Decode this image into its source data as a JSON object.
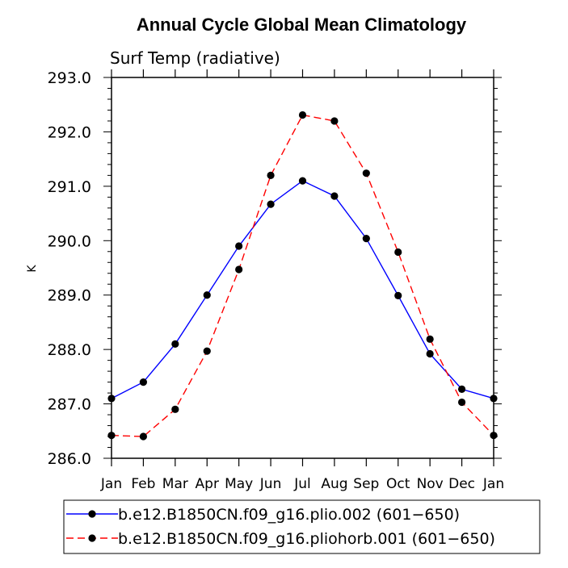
{
  "chart_data": {
    "type": "line",
    "title": "Annual Cycle Global Mean Climatology",
    "subtitle": "Surf Temp (radiative)",
    "xlabel": "",
    "ylabel": "K",
    "categories": [
      "Jan",
      "Feb",
      "Mar",
      "Apr",
      "May",
      "Jun",
      "Jul",
      "Aug",
      "Sep",
      "Oct",
      "Nov",
      "Dec",
      "Jan"
    ],
    "ylim": [
      286.0,
      293.0
    ],
    "yticks": [
      "286.0",
      "287.0",
      "288.0",
      "289.0",
      "290.0",
      "291.0",
      "292.0",
      "293.0"
    ],
    "grid": false,
    "legend_position": "bottom",
    "series": [
      {
        "name": "b.e12.B1850CN.f09_g16.plio.002 (601−650)",
        "color": "#0000ff",
        "dash": "solid",
        "values": [
          287.1,
          287.4,
          288.1,
          289.0,
          289.9,
          290.67,
          291.1,
          290.82,
          290.04,
          288.99,
          287.92,
          287.27,
          287.1
        ]
      },
      {
        "name": "b.e12.B1850CN.f09_g16.pliohorb.001 (601−650)",
        "color": "#ff0000",
        "dash": "dashed",
        "values": [
          286.42,
          286.4,
          286.9,
          287.97,
          289.47,
          291.2,
          292.31,
          292.2,
          291.24,
          289.79,
          288.19,
          287.03,
          286.42
        ]
      }
    ]
  }
}
